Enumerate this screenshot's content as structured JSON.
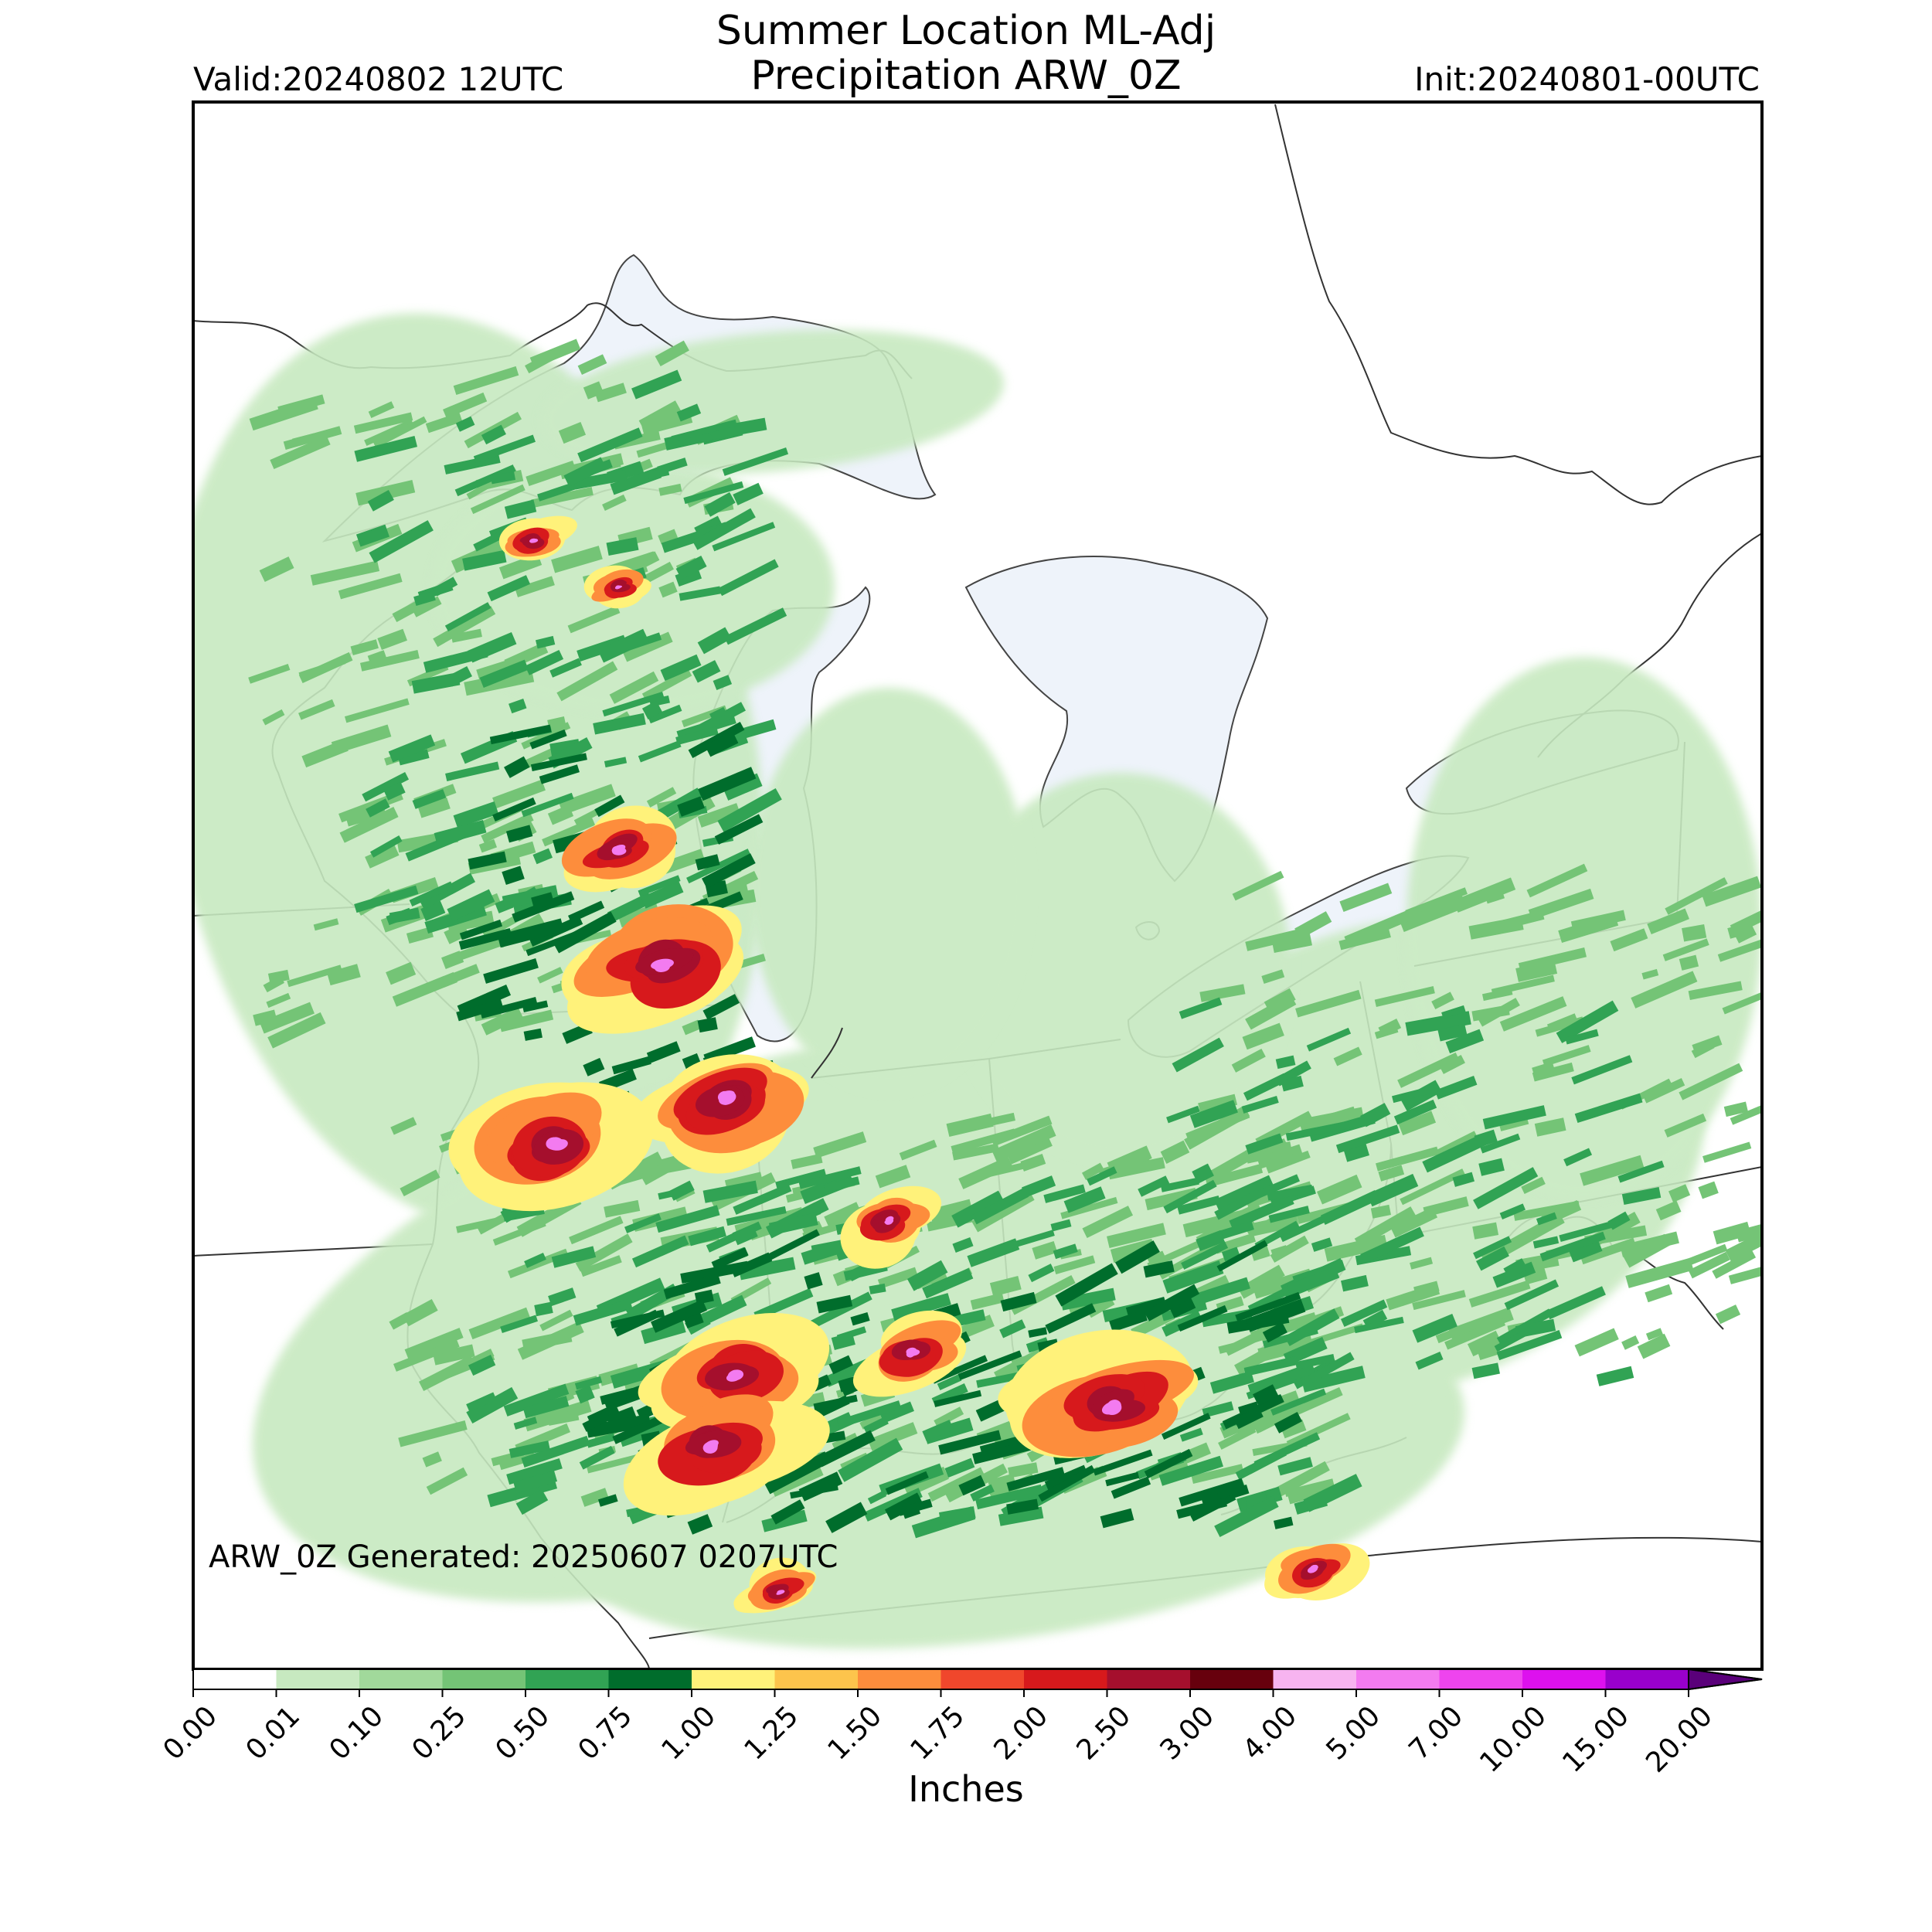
{
  "header": {
    "title_line1": "Summer Location ML-Adj",
    "title_line2": "Precipitation ARW_0Z",
    "valid": "Valid:20240802 12UTC",
    "init": "Init:20240801-00UTC"
  },
  "footer_note": "ARW_0Z Generated: 20250607 0207UTC",
  "colorbar": {
    "title": "Inches",
    "labels": [
      "0.00",
      "0.01",
      "0.10",
      "0.25",
      "0.50",
      "0.75",
      "1.00",
      "1.25",
      "1.50",
      "1.75",
      "2.00",
      "2.50",
      "3.00",
      "4.00",
      "5.00",
      "7.00",
      "10.00",
      "15.00",
      "20.00"
    ],
    "colors": [
      "#ffffff",
      "#c7e9c0",
      "#a1d99b",
      "#74c476",
      "#31a354",
      "#006d2c",
      "#fff27a",
      "#fdc44c",
      "#fd8d3c",
      "#f0472c",
      "#d7191c",
      "#a50f2d",
      "#67000d",
      "#f7b4f0",
      "#f37bf0",
      "#ee44ee",
      "#dd11ee",
      "#9900cc"
    ],
    "extend_color": "#5a007a"
  },
  "map": {
    "water_color": "#eef3fa",
    "precip_levels": [
      "#c7e9c0",
      "#74c476",
      "#31a354",
      "#006d2c",
      "#fff27a",
      "#fd8d3c",
      "#d7191c",
      "#a50f2d",
      "#f37bf0"
    ]
  }
}
